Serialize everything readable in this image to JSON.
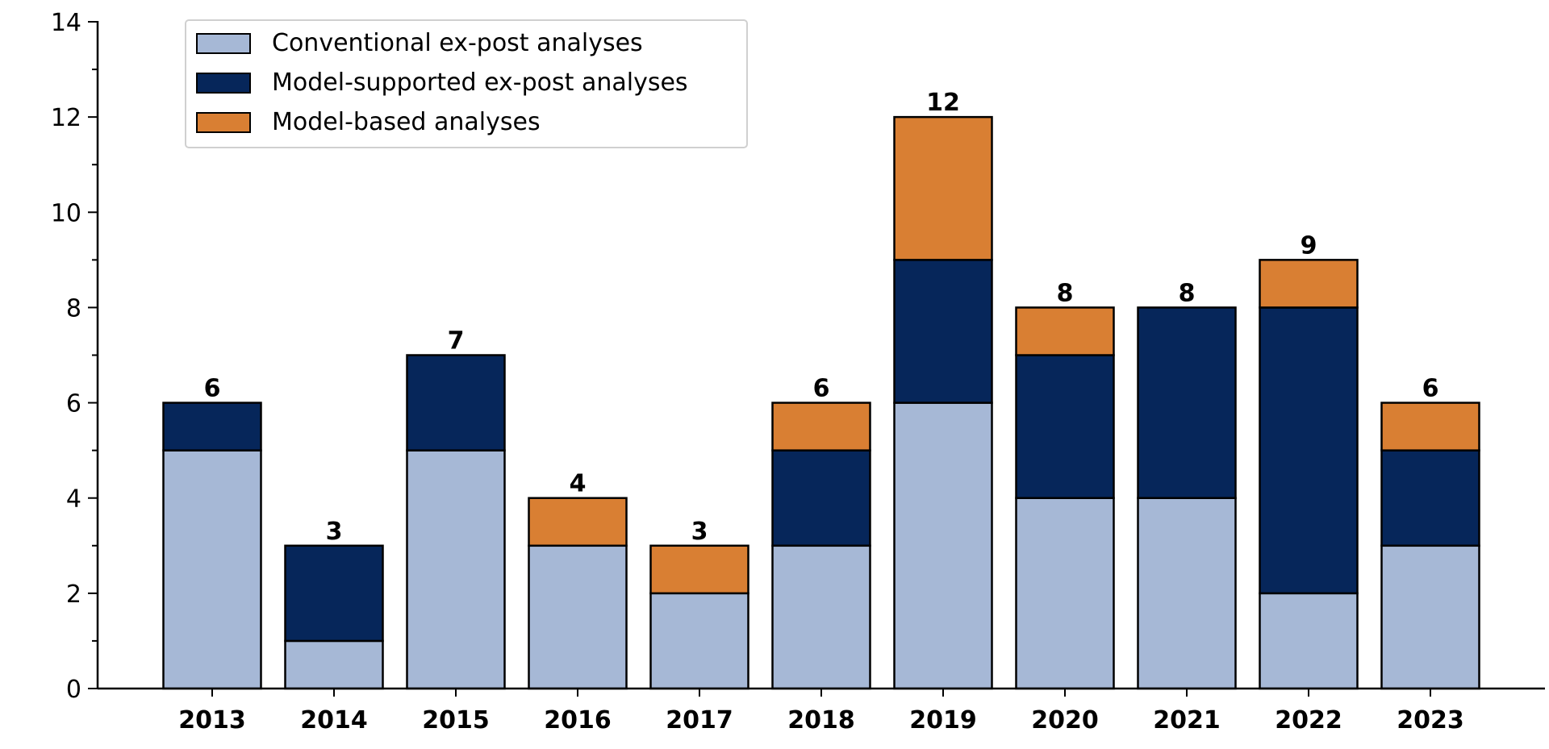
{
  "chart_data": {
    "type": "bar",
    "stacked": true,
    "categories": [
      "2013",
      "2014",
      "2015",
      "2016",
      "2017",
      "2018",
      "2019",
      "2020",
      "2021",
      "2022",
      "2023"
    ],
    "series": [
      {
        "name": "Conventional ex-post analyses",
        "color": "#a6b8d6",
        "values": [
          5,
          1,
          5,
          3,
          2,
          3,
          6,
          4,
          4,
          2,
          3
        ]
      },
      {
        "name": "Model-supported ex-post analyses",
        "color": "#06265a",
        "values": [
          1,
          2,
          2,
          0,
          0,
          2,
          3,
          3,
          4,
          6,
          2
        ]
      },
      {
        "name": "Model-based analyses",
        "color": "#d97f33",
        "values": [
          0,
          0,
          0,
          1,
          1,
          1,
          3,
          1,
          0,
          1,
          1
        ]
      }
    ],
    "totals": [
      "6",
      "3",
      "7",
      "4",
      "3",
      "6",
      "12",
      "8",
      "8",
      "9",
      "6"
    ],
    "yticks": [
      "0",
      "2",
      "4",
      "6",
      "8",
      "10",
      "12",
      "14"
    ],
    "ylim": [
      0,
      14
    ],
    "title": "",
    "xlabel": "",
    "ylabel": "",
    "grid": false,
    "legend_position": "top-left"
  }
}
